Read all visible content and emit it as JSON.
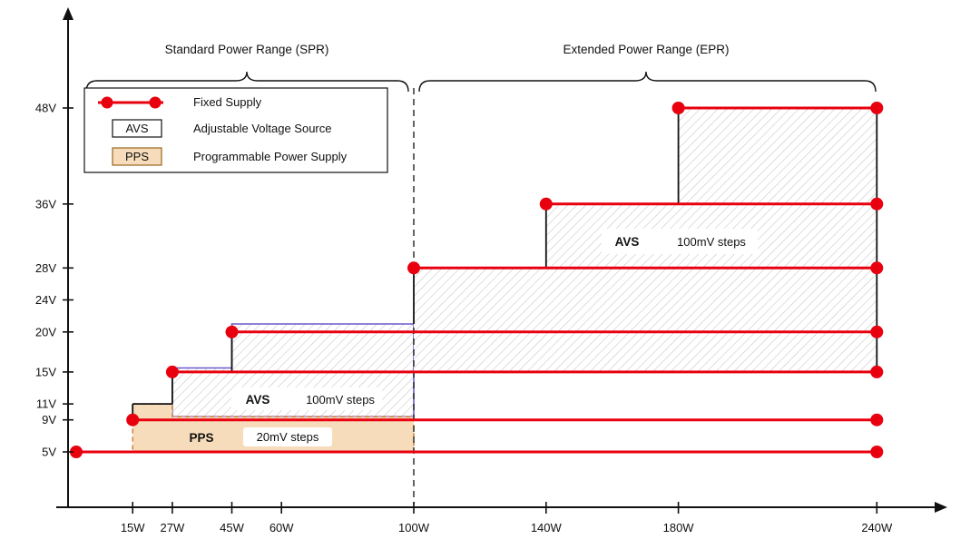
{
  "header": {
    "spr_title": "Standard Power Range (SPR)",
    "epr_title": "Extended Power Range (EPR)"
  },
  "legend": {
    "fixed_supply": "Fixed Supply",
    "avs_abbr": "AVS",
    "avs_full": "Adjustable Voltage Source",
    "pps_abbr": "PPS",
    "pps_full": "Programmable Power Supply"
  },
  "annotations": {
    "spr_avs_label": "AVS",
    "spr_avs_steps": "100mV steps",
    "epr_avs_label": "AVS",
    "epr_avs_steps": "100mV steps",
    "pps_label": "PPS",
    "pps_steps": "20mV steps"
  },
  "colors": {
    "fixed_supply_red": "#e8000f",
    "pps_fill": "#f6dcba",
    "pps_border": "#cc7a2e",
    "spr_avs_outline": "#6a5acd",
    "hatch": "#c8c8c8",
    "axis": "#111111"
  },
  "chart_data": {
    "type": "diagram",
    "title": "USB Power Delivery power rules: SPR and EPR voltage/power ranges",
    "x_axis": {
      "unit": "W",
      "ticks": [
        15,
        27,
        45,
        60,
        100,
        140,
        180,
        240
      ],
      "tick_labels": [
        "15W",
        "27W",
        "45W",
        "60W",
        "100W",
        "140W",
        "180W",
        "240W"
      ]
    },
    "y_axis": {
      "unit": "V",
      "ticks": [
        5,
        9,
        11,
        15,
        20,
        24,
        28,
        36,
        48
      ],
      "tick_labels": [
        "5V",
        "9V",
        "11V",
        "15V",
        "20V",
        "24V",
        "28V",
        "36V",
        "48V"
      ]
    },
    "fixed_supply_lines": [
      {
        "voltage_v": 5,
        "from_w": 0,
        "to_w": 240
      },
      {
        "voltage_v": 9,
        "from_w": 15,
        "to_w": 240
      },
      {
        "voltage_v": 15,
        "from_w": 27,
        "to_w": 240
      },
      {
        "voltage_v": 20,
        "from_w": 45,
        "to_w": 240
      },
      {
        "voltage_v": 28,
        "from_w": 100,
        "to_w": 240
      },
      {
        "voltage_v": 36,
        "from_w": 140,
        "to_w": 240
      },
      {
        "voltage_v": 48,
        "from_w": 180,
        "to_w": 240
      }
    ],
    "regions": [
      {
        "id": "spr-avs",
        "kind": "avs-hatch",
        "points_wv": [
          [
            27,
            15.5
          ],
          [
            45,
            15.5
          ],
          [
            45,
            21
          ],
          [
            100,
            21
          ],
          [
            100,
            9.4
          ],
          [
            27,
            9.4
          ]
        ]
      },
      {
        "id": "epr-avs",
        "kind": "avs-hatch",
        "points_wv": [
          [
            100,
            28
          ],
          [
            140,
            28
          ],
          [
            140,
            36
          ],
          [
            180,
            36
          ],
          [
            180,
            48
          ],
          [
            240,
            48
          ],
          [
            240,
            15
          ],
          [
            100,
            15
          ]
        ]
      },
      {
        "id": "pps",
        "kind": "pps-fill",
        "points_wv": [
          [
            15,
            11
          ],
          [
            27,
            11
          ],
          [
            27,
            9.4
          ],
          [
            100,
            9.4
          ],
          [
            100,
            5
          ],
          [
            15,
            5
          ]
        ]
      }
    ],
    "step_segments_wv": [
      [
        [
          15,
          9
        ],
        [
          15,
          11
        ]
      ],
      [
        [
          15,
          11
        ],
        [
          27,
          11
        ]
      ],
      [
        [
          27,
          11
        ],
        [
          27,
          15
        ]
      ],
      [
        [
          45,
          15
        ],
        [
          45,
          20
        ]
      ],
      [
        [
          100,
          21
        ],
        [
          100,
          28
        ]
      ],
      [
        [
          140,
          28
        ],
        [
          140,
          36
        ]
      ],
      [
        [
          180,
          36
        ],
        [
          180,
          48
        ]
      ],
      [
        [
          240,
          15
        ],
        [
          240,
          48
        ]
      ]
    ],
    "divider_w": 100
  }
}
